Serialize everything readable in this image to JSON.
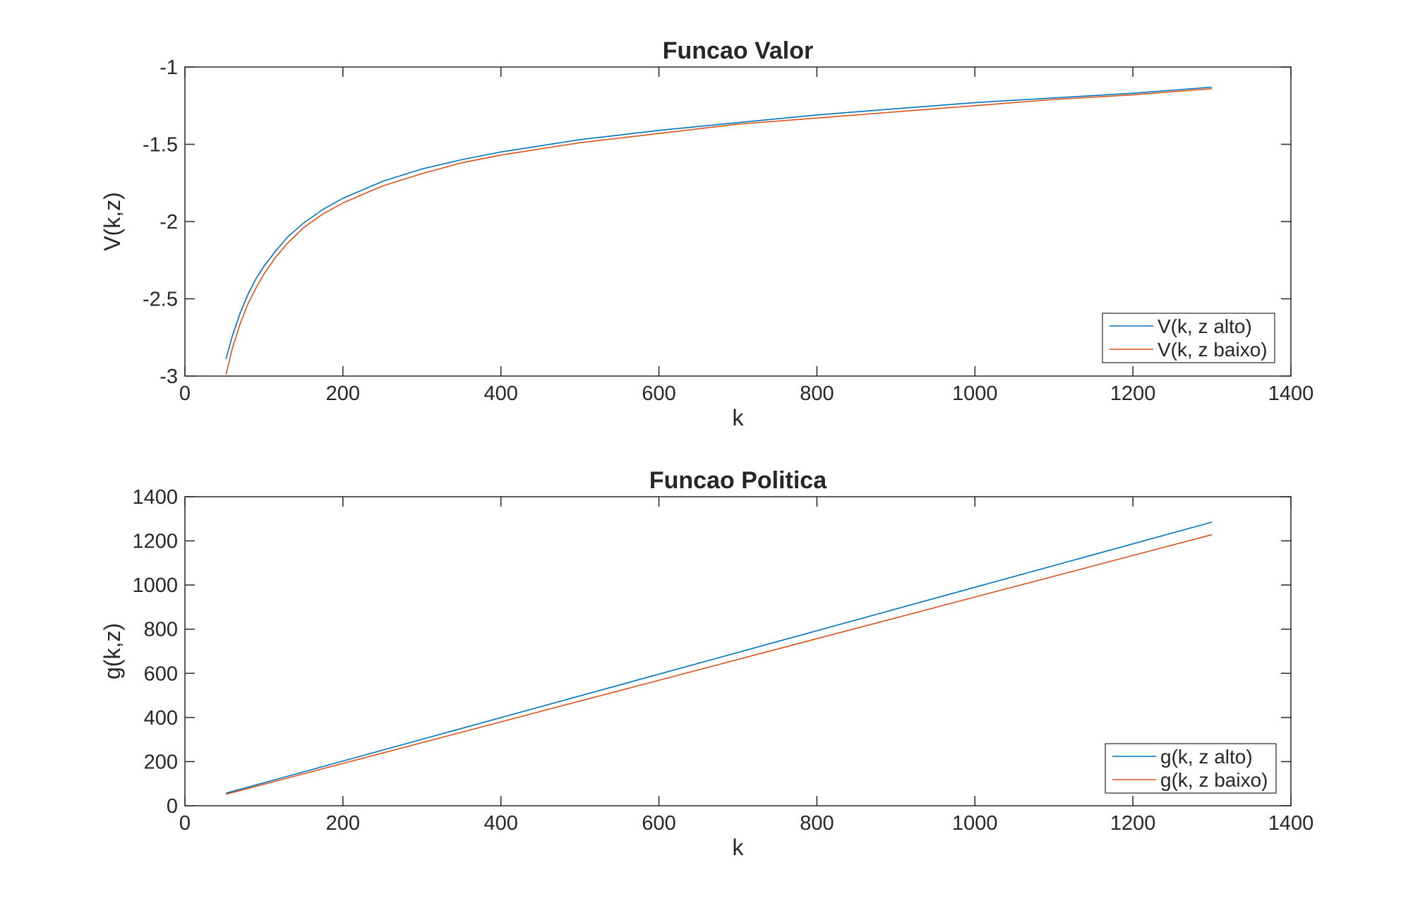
{
  "chart_data": [
    {
      "type": "line",
      "title": "Funcao Valor",
      "xlabel": "k",
      "ylabel": "V(k,z)",
      "xlim": [
        0,
        1400
      ],
      "ylim": [
        -3,
        -1
      ],
      "xticks": [
        "0",
        "200",
        "400",
        "600",
        "800",
        "1000",
        "1200",
        "1400"
      ],
      "yticks": [
        "-3",
        "-2.5",
        "-2",
        "-1.5",
        "-1"
      ],
      "grid": false,
      "legend_position": "bottom-right",
      "series": [
        {
          "name": "V(k, z alto)",
          "color": "#0072BD",
          "x": [
            52,
            60,
            70,
            80,
            90,
            100,
            115,
            130,
            150,
            175,
            200,
            250,
            300,
            350,
            400,
            500,
            600,
            700,
            800,
            900,
            1000,
            1100,
            1200,
            1300
          ],
          "y": [
            -2.89,
            -2.74,
            -2.59,
            -2.47,
            -2.37,
            -2.29,
            -2.19,
            -2.1,
            -2.01,
            -1.92,
            -1.85,
            -1.74,
            -1.66,
            -1.6,
            -1.55,
            -1.47,
            -1.41,
            -1.36,
            -1.31,
            -1.27,
            -1.23,
            -1.2,
            -1.17,
            -1.13
          ]
        },
        {
          "name": "V(k, z baixo)",
          "color": "#D95319",
          "x": [
            52,
            60,
            70,
            80,
            90,
            100,
            115,
            130,
            150,
            175,
            200,
            250,
            300,
            350,
            400,
            500,
            600,
            700,
            800,
            900,
            1000,
            1100,
            1200,
            1300
          ],
          "y": [
            -2.99,
            -2.82,
            -2.66,
            -2.53,
            -2.43,
            -2.34,
            -2.23,
            -2.14,
            -2.04,
            -1.95,
            -1.88,
            -1.77,
            -1.69,
            -1.62,
            -1.57,
            -1.49,
            -1.43,
            -1.37,
            -1.33,
            -1.29,
            -1.25,
            -1.21,
            -1.18,
            -1.14
          ]
        }
      ]
    },
    {
      "type": "line",
      "title": "Funcao Politica",
      "xlabel": "k",
      "ylabel": "g(k,z)",
      "xlim": [
        0,
        1400
      ],
      "ylim": [
        0,
        1400
      ],
      "xticks": [
        "0",
        "200",
        "400",
        "600",
        "800",
        "1000",
        "1200",
        "1400"
      ],
      "yticks": [
        "0",
        "200",
        "400",
        "600",
        "800",
        "1000",
        "1200",
        "1400"
      ],
      "grid": false,
      "legend_position": "bottom-right",
      "series": [
        {
          "name": "g(k, z alto)",
          "color": "#0072BD",
          "x": [
            52,
            1300
          ],
          "y": [
            57,
            1285
          ]
        },
        {
          "name": "g(k, z baixo)",
          "color": "#D95319",
          "x": [
            52,
            1300
          ],
          "y": [
            52,
            1228
          ]
        }
      ]
    }
  ]
}
